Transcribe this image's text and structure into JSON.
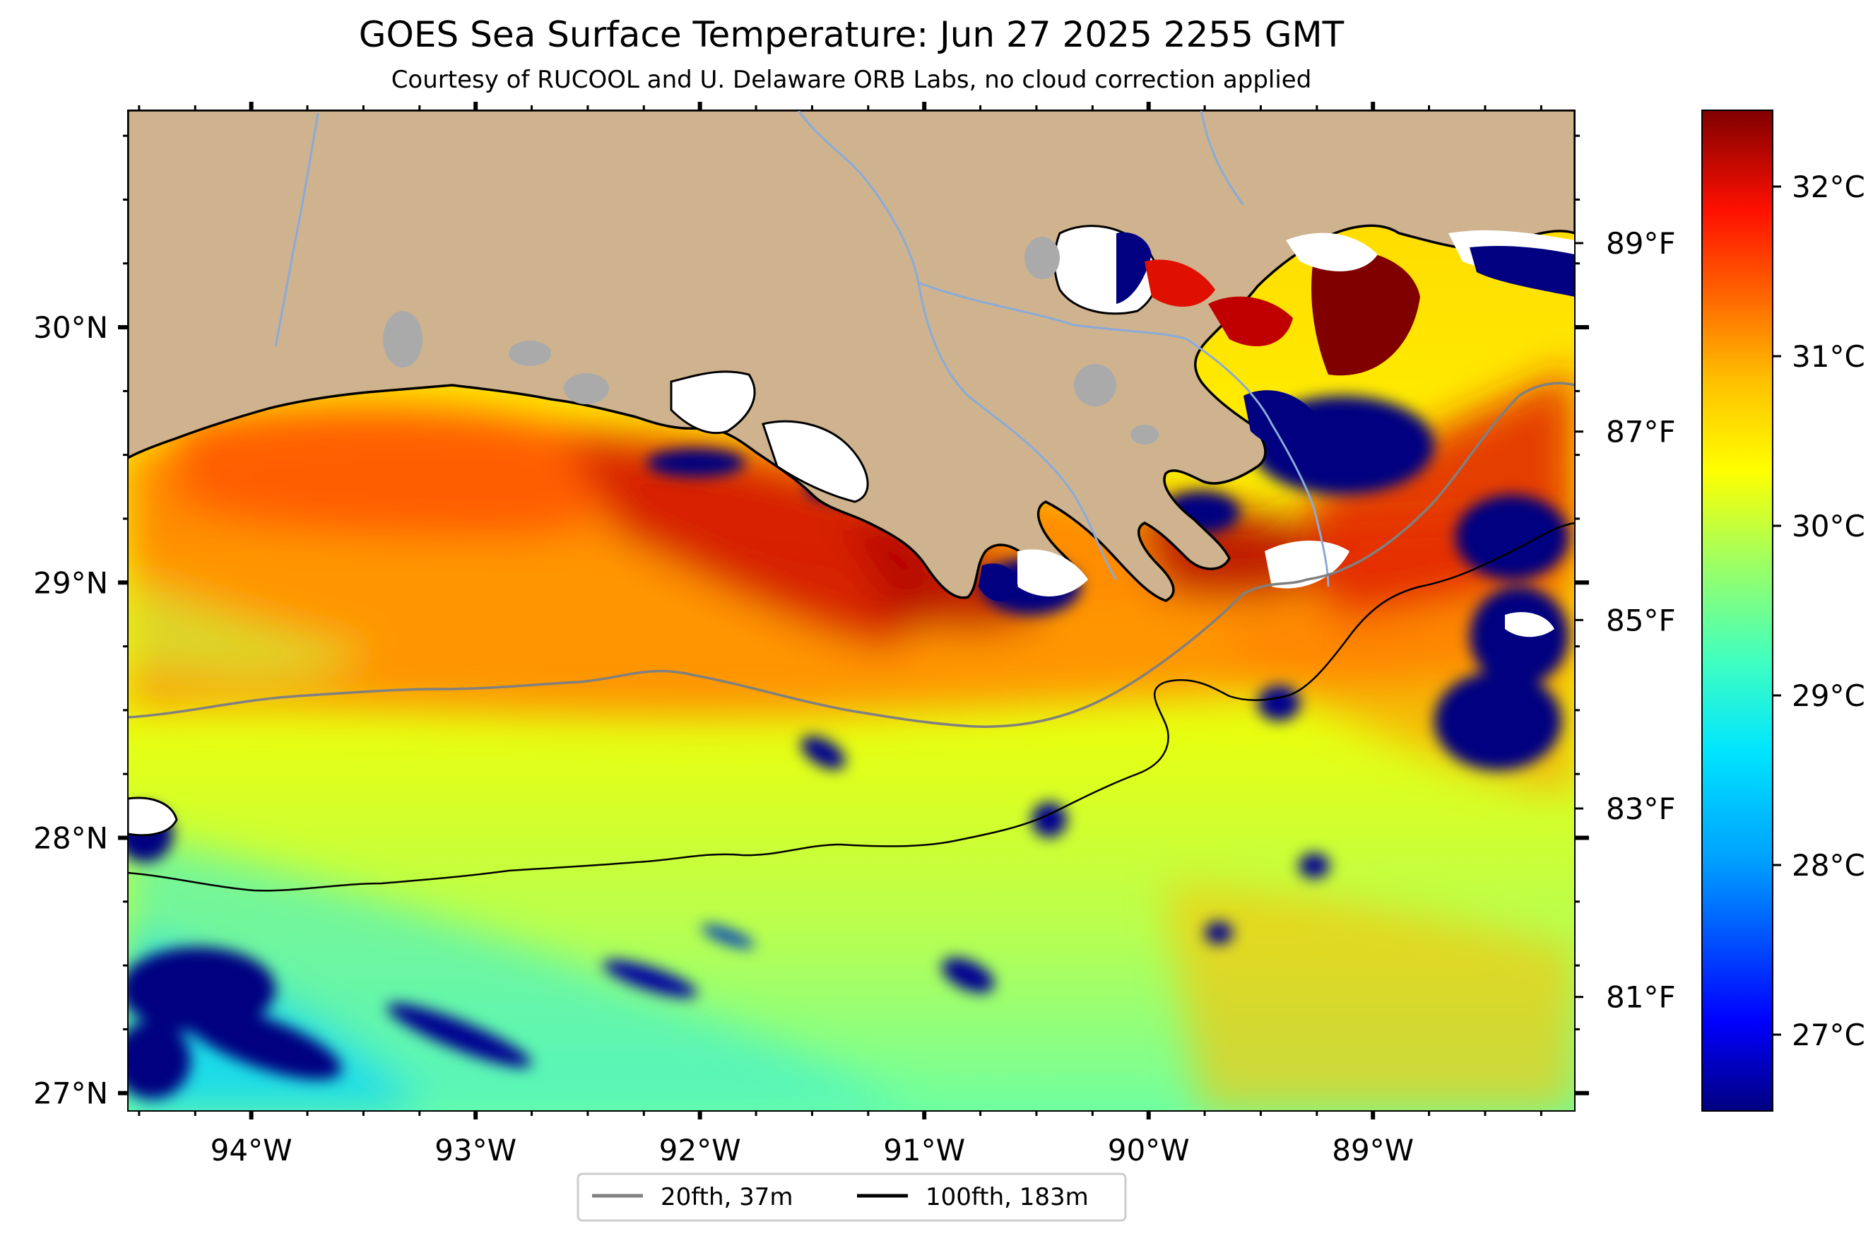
{
  "header": {
    "title": "GOES Sea Surface Temperature: Jun 27 2025 2255 GMT",
    "subtitle": "Courtesy of RUCOOL and U. Delaware ORB Labs, no cloud correction applied"
  },
  "map": {
    "lon_range": [
      -94.55,
      -88.1
    ],
    "lat_range": [
      26.93,
      30.85
    ],
    "lon_ticks": [
      {
        "value": -94,
        "label": "94°W"
      },
      {
        "value": -93,
        "label": "93°W"
      },
      {
        "value": -92,
        "label": "92°W"
      },
      {
        "value": -91,
        "label": "91°W"
      },
      {
        "value": -90,
        "label": "90°W"
      },
      {
        "value": -89,
        "label": "89°W"
      }
    ],
    "lat_ticks": [
      {
        "value": 30,
        "label": "30°N"
      },
      {
        "value": 29,
        "label": "29°N"
      },
      {
        "value": 28,
        "label": "28°N"
      },
      {
        "value": 27,
        "label": "27°N"
      }
    ],
    "colors": {
      "land": "#cfb38e",
      "coastline": "#000000",
      "river": "#8aaad8",
      "lake": "#aaaaaa",
      "cloud": "#ffffff",
      "isobath_20": "#808080",
      "isobath_100": "#000000"
    }
  },
  "fahrenheit_axis": {
    "ticks": [
      {
        "value": 89,
        "label": "89°F"
      },
      {
        "value": 87,
        "label": "87°F"
      },
      {
        "value": 85,
        "label": "85°F"
      },
      {
        "value": 83,
        "label": "83°F"
      },
      {
        "value": 81,
        "label": "81°F"
      }
    ]
  },
  "colorbar": {
    "range_c": [
      26.55,
      32.45
    ],
    "ticks": [
      {
        "value": 27,
        "label": "27°C"
      },
      {
        "value": 28,
        "label": "28°C"
      },
      {
        "value": 29,
        "label": "29°C"
      },
      {
        "value": 30,
        "label": "30°C"
      },
      {
        "value": 31,
        "label": "31°C"
      },
      {
        "value": 32,
        "label": "32°C"
      }
    ],
    "colormap": [
      "#000080",
      "#0000ff",
      "#00a0ff",
      "#00e5ff",
      "#40ffc0",
      "#a0ff60",
      "#ffff00",
      "#ffc000",
      "#ff8000",
      "#ff2000",
      "#c00000",
      "#800000"
    ]
  },
  "legend": {
    "items": [
      {
        "label": "20fth, 37m",
        "color": "#808080"
      },
      {
        "label": "100fth, 183m",
        "color": "#000000"
      }
    ]
  }
}
